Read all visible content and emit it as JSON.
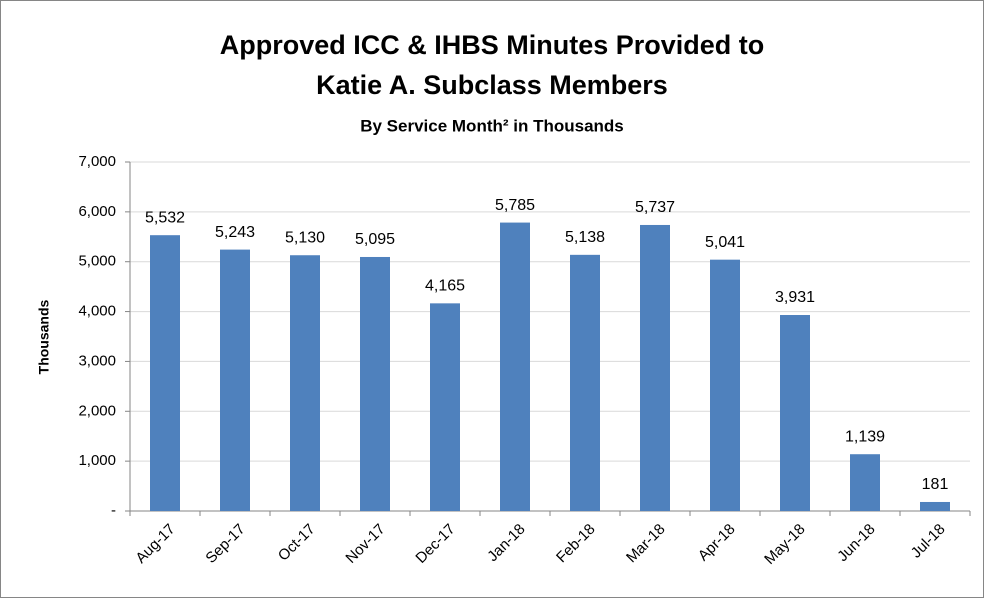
{
  "chart_data": {
    "type": "bar",
    "title": [
      "Approved ICC & IHBS Minutes Provided to",
      "Katie A. Subclass Members"
    ],
    "subtitle": "By Service Month² in Thousands",
    "y_label": "Thousands",
    "categories": [
      "Aug-17",
      "Sep-17",
      "Oct-17",
      "Nov-17",
      "Dec-17",
      "Jan-18",
      "Feb-18",
      "Mar-18",
      "Apr-18",
      "May-18",
      "Jun-18",
      "Jul-18"
    ],
    "values": [
      5532,
      5243,
      5130,
      5095,
      4165,
      5785,
      5138,
      5737,
      5041,
      3931,
      1139,
      181
    ],
    "value_labels": [
      "5,532",
      "5,243",
      "5,130",
      "5,095",
      "4,165",
      "5,785",
      "5,138",
      "5,737",
      "5,041",
      "3,931",
      "1,139",
      "181"
    ],
    "color": "#4f81bd",
    "ylim": [
      0,
      7000
    ],
    "yticks": [
      {
        "value": 0,
        "label": "-"
      },
      {
        "value": 1000,
        "label": "1,000"
      },
      {
        "value": 2000,
        "label": "2,000"
      },
      {
        "value": 3000,
        "label": "3,000"
      },
      {
        "value": 4000,
        "label": "4,000"
      },
      {
        "value": 5000,
        "label": "5,000"
      },
      {
        "value": 6000,
        "label": "6,000"
      },
      {
        "value": 7000,
        "label": "7,000"
      }
    ],
    "grid": true
  }
}
